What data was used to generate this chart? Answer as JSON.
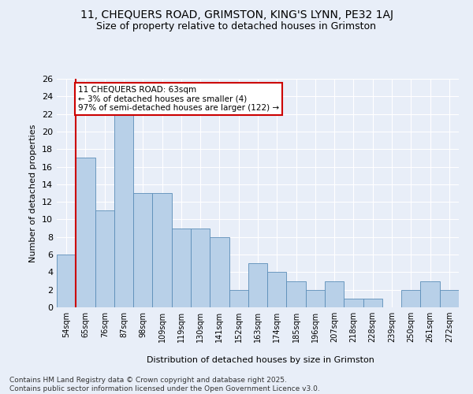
{
  "title_line1": "11, CHEQUERS ROAD, GRIMSTON, KING'S LYNN, PE32 1AJ",
  "title_line2": "Size of property relative to detached houses in Grimston",
  "xlabel": "Distribution of detached houses by size in Grimston",
  "ylabel": "Number of detached properties",
  "footnote": "Contains HM Land Registry data © Crown copyright and database right 2025.\nContains public sector information licensed under the Open Government Licence v3.0.",
  "categories": [
    "54sqm",
    "65sqm",
    "76sqm",
    "87sqm",
    "98sqm",
    "109sqm",
    "119sqm",
    "130sqm",
    "141sqm",
    "152sqm",
    "163sqm",
    "174sqm",
    "185sqm",
    "196sqm",
    "207sqm",
    "218sqm",
    "228sqm",
    "239sqm",
    "250sqm",
    "261sqm",
    "272sqm"
  ],
  "values": [
    6,
    17,
    11,
    22,
    13,
    13,
    9,
    9,
    8,
    2,
    5,
    4,
    3,
    2,
    3,
    1,
    1,
    0,
    2,
    3,
    2
  ],
  "bar_color": "#b8d0e8",
  "bar_edge_color": "#5b8db8",
  "annotation_text": "11 CHEQUERS ROAD: 63sqm\n← 3% of detached houses are smaller (4)\n97% of semi-detached houses are larger (122) →",
  "annotation_box_color": "white",
  "annotation_box_edge": "#cc0000",
  "vline_color": "#cc0000",
  "ylim": [
    0,
    26
  ],
  "yticks": [
    0,
    2,
    4,
    6,
    8,
    10,
    12,
    14,
    16,
    18,
    20,
    22,
    24,
    26
  ],
  "bg_color": "#e8eef8",
  "grid_color": "white",
  "title_fontsize": 10,
  "subtitle_fontsize": 9,
  "footnote_fontsize": 6.5
}
